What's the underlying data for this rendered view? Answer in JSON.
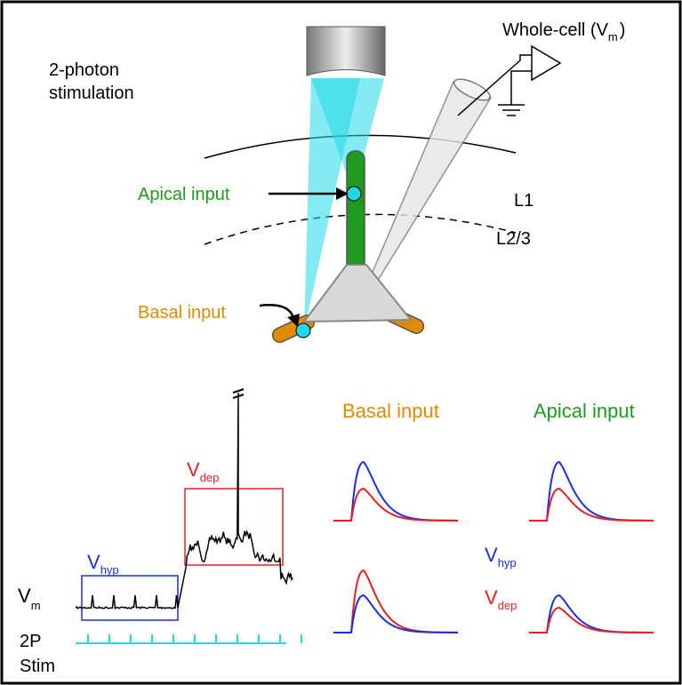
{
  "labels": {
    "two_photon": [
      "2-photon",
      "stimulation"
    ],
    "whole_cell": {
      "text": "Whole-cell (V",
      "sub": "m",
      "close": ")"
    },
    "apical_input": "Apical input",
    "basal_input": "Basal input",
    "l1": "L1",
    "l23": "L2/3"
  },
  "trace": {
    "v_m": {
      "base": "V",
      "sub": "m"
    },
    "v_hyp": {
      "base": "V",
      "sub": "hyp"
    },
    "v_dep": {
      "base": "V",
      "sub": "dep"
    },
    "stim": [
      "2P",
      "Stim"
    ]
  },
  "panels": {
    "basal_title": "Basal input",
    "apical_title": "Apical input",
    "legend": [
      {
        "base": "V",
        "sub": "hyp"
      },
      {
        "base": "V",
        "sub": "dep"
      }
    ]
  }
}
